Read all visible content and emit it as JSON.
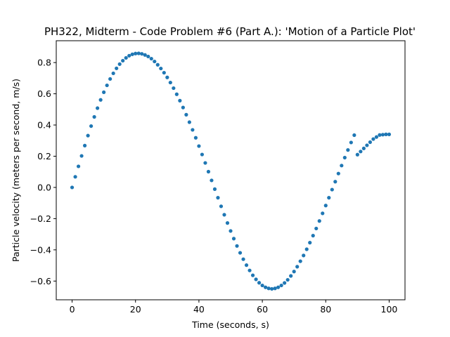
{
  "chart_data": {
    "type": "scatter",
    "title": "PH322, Midterm - Code Problem #6 (Part A.): 'Motion of a Particle Plot'",
    "xlabel": "Time (seconds, s)",
    "ylabel": "Particle velocity (meters per second, m/s)",
    "xlim": [
      -5,
      105
    ],
    "ylim": [
      -0.72,
      0.94
    ],
    "x_ticks": [
      0,
      20,
      40,
      60,
      80,
      100
    ],
    "x_tick_labels": [
      "0",
      "20",
      "40",
      "60",
      "80",
      "100"
    ],
    "y_ticks": [
      -0.6,
      -0.4,
      -0.2,
      0.0,
      0.2,
      0.4,
      0.6,
      0.8
    ],
    "y_tick_labels": [
      "−0.6",
      "−0.4",
      "−0.2",
      "0.0",
      "0.2",
      "0.4",
      "0.6",
      "0.8"
    ],
    "grid": false,
    "legend": false,
    "marker_color": "#1f77b4",
    "series": [
      {
        "x": [
          0,
          1,
          2,
          3,
          4,
          5,
          6,
          7,
          8,
          9,
          10,
          11,
          12,
          13,
          14,
          15,
          16,
          17,
          18,
          19,
          20,
          21,
          22,
          23,
          24,
          25,
          26,
          27,
          28,
          29,
          30,
          31,
          32,
          33,
          34,
          35,
          36,
          37,
          38,
          39,
          40,
          41,
          42,
          43,
          44,
          45,
          46,
          47,
          48,
          49,
          50,
          51,
          52,
          53,
          54,
          55,
          56,
          57,
          58,
          59,
          60,
          61,
          62,
          63,
          64,
          65,
          66,
          67,
          68,
          69,
          70,
          71,
          72,
          73,
          74,
          75,
          76,
          77,
          78,
          79,
          80,
          81,
          82,
          83,
          84,
          85,
          86,
          87,
          88,
          89,
          90,
          91,
          92,
          93,
          94,
          95,
          96,
          97,
          98,
          99,
          100
        ],
        "y": [
          0.0,
          0.068,
          0.135,
          0.202,
          0.268,
          0.332,
          0.393,
          0.452,
          0.508,
          0.561,
          0.61,
          0.654,
          0.695,
          0.731,
          0.763,
          0.79,
          0.812,
          0.83,
          0.844,
          0.853,
          0.858,
          0.859,
          0.856,
          0.849,
          0.839,
          0.825,
          0.807,
          0.786,
          0.762,
          0.735,
          0.705,
          0.672,
          0.636,
          0.597,
          0.556,
          0.512,
          0.466,
          0.418,
          0.369,
          0.318,
          0.265,
          0.211,
          0.157,
          0.101,
          0.045,
          -0.011,
          -0.066,
          -0.121,
          -0.175,
          -0.228,
          -0.279,
          -0.328,
          -0.375,
          -0.419,
          -0.46,
          -0.498,
          -0.532,
          -0.563,
          -0.589,
          -0.611,
          -0.628,
          -0.64,
          -0.647,
          -0.65,
          -0.647,
          -0.64,
          -0.628,
          -0.612,
          -0.592,
          -0.567,
          -0.539,
          -0.508,
          -0.473,
          -0.436,
          -0.396,
          -0.354,
          -0.309,
          -0.263,
          -0.215,
          -0.166,
          -0.116,
          -0.066,
          -0.014,
          0.037,
          0.089,
          0.14,
          0.191,
          0.24,
          0.288,
          0.335,
          0.21,
          0.23,
          0.25,
          0.27,
          0.29,
          0.31,
          0.323,
          0.336,
          0.338,
          0.34,
          0.34
        ]
      }
    ]
  }
}
